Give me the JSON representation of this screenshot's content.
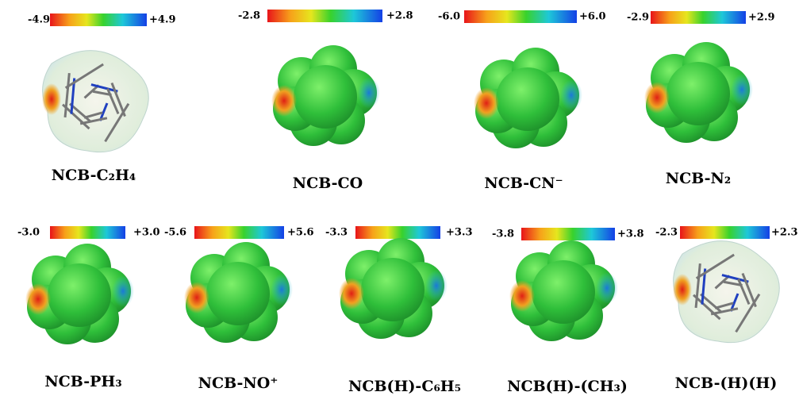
{
  "panels": [
    {
      "min": "-4.9",
      "max": "+4.9",
      "label": "NCB-C₂H₄"
    },
    {
      "min": "-2.8",
      "max": "+2.8",
      "label": "NCB-CO"
    },
    {
      "min": "-6.0",
      "max": "+6.0",
      "label": "NCB-CN⁻"
    },
    {
      "min": "-2.9",
      "max": "+2.9",
      "label": "NCB-N₂"
    },
    {
      "min": "-3.0",
      "max": "+3.0",
      "label": "NCB-PH₃"
    },
    {
      "min": "-5.6",
      "max": "+5.6",
      "label": "NCB-NO⁺"
    },
    {
      "min": "-3.3",
      "max": "+3.3",
      "label": "NCB(H)-C₆H₅"
    },
    {
      "min": "-3.8",
      "max": "+3.8",
      "label": "NCB(H)-(CH₃)"
    },
    {
      "min": "-2.3",
      "max": "+2.3",
      "label": "NCB-(H)(H)"
    }
  ]
}
